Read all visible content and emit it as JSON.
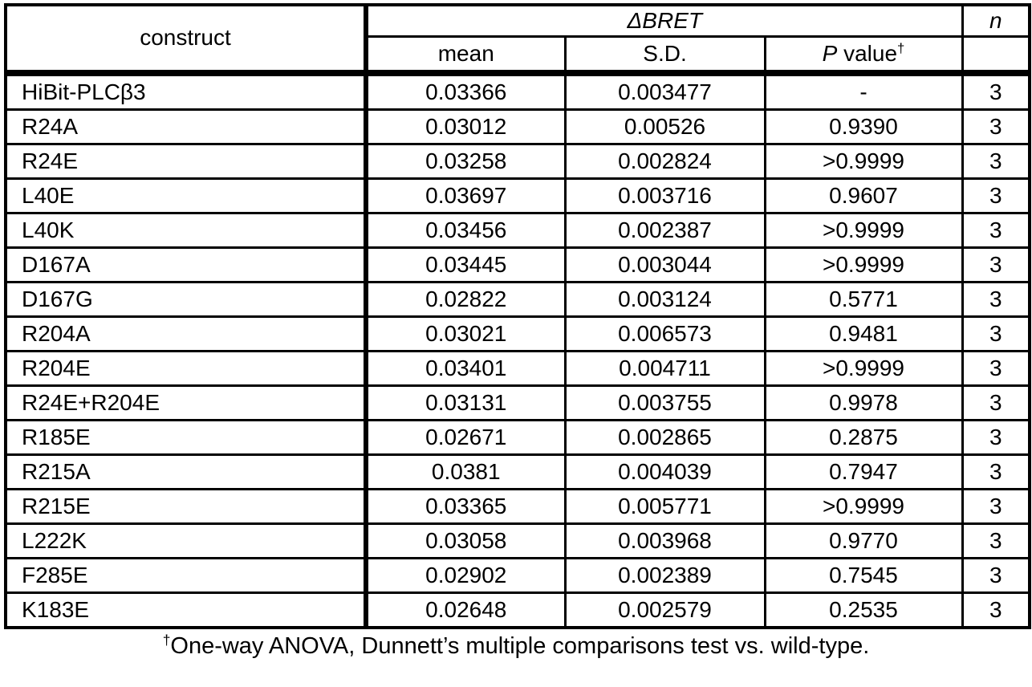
{
  "table": {
    "header": {
      "construct": "construct",
      "dbret": "ΔBRET",
      "mean": "mean",
      "sd": "S.D.",
      "p_italic": "P",
      "p_rest": " value",
      "dagger": "†",
      "n": "n"
    },
    "rows": [
      {
        "construct": "HiBit-PLCβ3",
        "mean": "0.03366",
        "sd": "0.003477",
        "p": "-",
        "n": "3"
      },
      {
        "construct": "R24A",
        "mean": "0.03012",
        "sd": "0.00526",
        "p": "0.9390",
        "n": "3"
      },
      {
        "construct": "R24E",
        "mean": "0.03258",
        "sd": "0.002824",
        "p": ">0.9999",
        "n": "3"
      },
      {
        "construct": "L40E",
        "mean": "0.03697",
        "sd": "0.003716",
        "p": "0.9607",
        "n": "3"
      },
      {
        "construct": "L40K",
        "mean": "0.03456",
        "sd": "0.002387",
        "p": ">0.9999",
        "n": "3"
      },
      {
        "construct": "D167A",
        "mean": "0.03445",
        "sd": "0.003044",
        "p": ">0.9999",
        "n": "3"
      },
      {
        "construct": "D167G",
        "mean": "0.02822",
        "sd": "0.003124",
        "p": "0.5771",
        "n": "3"
      },
      {
        "construct": "R204A",
        "mean": "0.03021",
        "sd": "0.006573",
        "p": "0.9481",
        "n": "3"
      },
      {
        "construct": "R204E",
        "mean": "0.03401",
        "sd": "0.004711",
        "p": ">0.9999",
        "n": "3"
      },
      {
        "construct": "R24E+R204E",
        "mean": "0.03131",
        "sd": "0.003755",
        "p": "0.9978",
        "n": "3"
      },
      {
        "construct": "R185E",
        "mean": "0.02671",
        "sd": "0.002865",
        "p": "0.2875",
        "n": "3"
      },
      {
        "construct": "R215A",
        "mean": "0.0381",
        "sd": "0.004039",
        "p": "0.7947",
        "n": "3"
      },
      {
        "construct": "R215E",
        "mean": "0.03365",
        "sd": "0.005771",
        "p": ">0.9999",
        "n": "3"
      },
      {
        "construct": "L222K",
        "mean": "0.03058",
        "sd": "0.003968",
        "p": "0.9770",
        "n": "3"
      },
      {
        "construct": "F285E",
        "mean": "0.02902",
        "sd": "0.002389",
        "p": "0.7545",
        "n": "3"
      },
      {
        "construct": "K183E",
        "mean": "0.02648",
        "sd": "0.002579",
        "p": "0.2535",
        "n": "3"
      }
    ]
  },
  "footnote": {
    "dagger": "†",
    "text": "One-way ANOVA, Dunnett’s multiple comparisons test vs. wild-type."
  },
  "colors": {
    "text": "#000000",
    "background": "#ffffff",
    "border": "#000000"
  }
}
